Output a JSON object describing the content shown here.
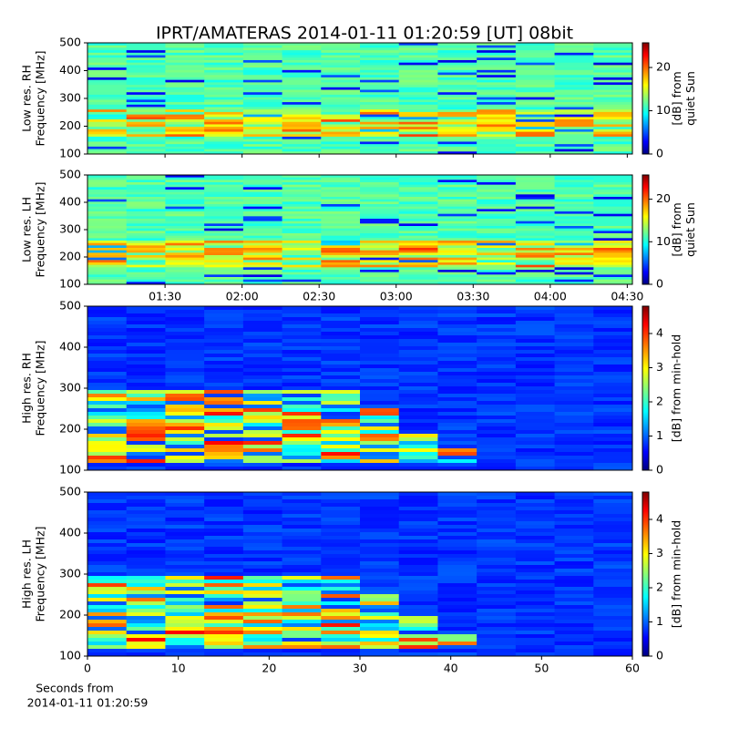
{
  "chart_data": [
    {
      "type": "heatmap",
      "title": "IPRT/AMATERAS 2014-01-11 01:20:59 [UT]   08bit",
      "ylabel": [
        "Low res. RH",
        "Frequency [MHz]"
      ],
      "ylim": [
        100,
        500
      ],
      "yticks": [
        100,
        200,
        300,
        400,
        500
      ],
      "xlim": [
        59.8,
        272
      ],
      "colormap": "jet",
      "colorbar": {
        "lim": [
          0,
          25.7
        ],
        "ticks": [
          0,
          10,
          20
        ],
        "label": [
          "[dB] from",
          "quiet Sun"
        ]
      }
    },
    {
      "type": "heatmap",
      "ylabel": [
        "Low res. LH",
        "Frequency [MHz]"
      ],
      "ylim": [
        100,
        500
      ],
      "yticks": [
        100,
        200,
        300,
        400,
        500
      ],
      "xlim": [
        59.8,
        272
      ],
      "xticks": [
        {
          "value": 90,
          "label": "01:30"
        },
        {
          "value": 120,
          "label": "02:00"
        },
        {
          "value": 150,
          "label": "02:30"
        },
        {
          "value": 180,
          "label": "03:00"
        },
        {
          "value": 210,
          "label": "03:30"
        },
        {
          "value": 240,
          "label": "04:00"
        },
        {
          "value": 270,
          "label": "04:30"
        }
      ],
      "colormap": "jet",
      "colorbar": {
        "lim": [
          0,
          25.7
        ],
        "ticks": [
          0,
          10,
          20
        ],
        "label": [
          "[dB] from",
          "quiet Sun"
        ]
      }
    },
    {
      "type": "heatmap",
      "ylabel": [
        "High res. RH",
        "Frequency [MHz]"
      ],
      "ylim": [
        100,
        500
      ],
      "yticks": [
        100,
        200,
        300,
        400,
        500
      ],
      "xlim": [
        0,
        60
      ],
      "colormap": "jet",
      "colorbar": {
        "lim": [
          0,
          4.8
        ],
        "ticks": [
          0,
          1,
          2,
          3,
          4
        ],
        "label": [
          "[dB] from min-hold"
        ]
      }
    },
    {
      "type": "heatmap",
      "ylabel": [
        "High res. LH",
        "Frequency [MHz]"
      ],
      "ylim": [
        100,
        500
      ],
      "yticks": [
        100,
        200,
        300,
        400,
        500
      ],
      "xlim": [
        0,
        60
      ],
      "xticks": [
        0,
        10,
        20,
        30,
        40,
        50,
        60
      ],
      "xlabel": [
        "Seconds from",
        "2014-01-11 01:20:59"
      ],
      "colormap": "jet",
      "colorbar": {
        "lim": [
          0,
          4.8
        ],
        "ticks": [
          0,
          1,
          2,
          3,
          4
        ],
        "label": [
          "[dB] from min-hold"
        ]
      }
    }
  ]
}
